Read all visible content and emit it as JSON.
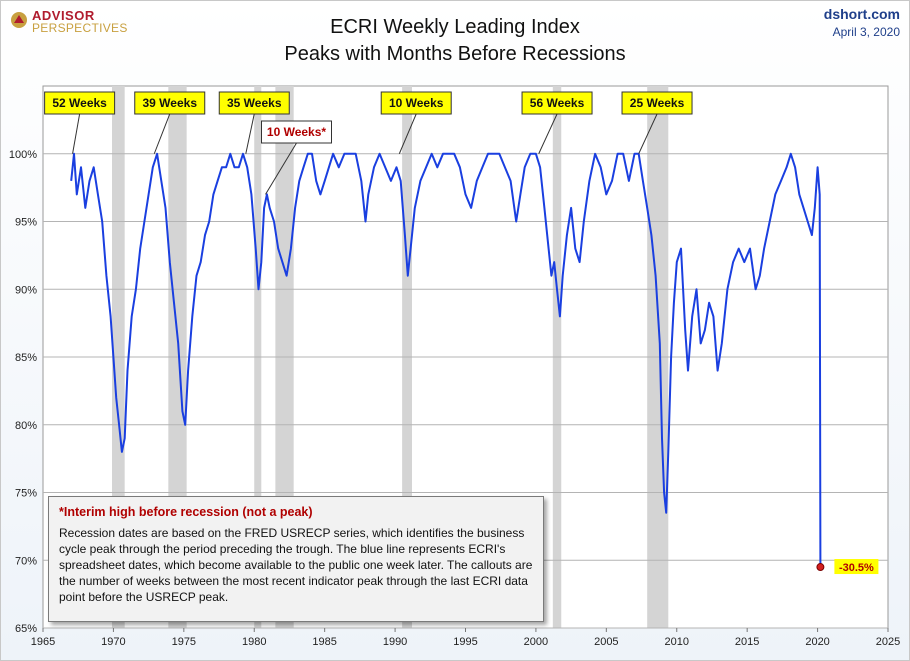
{
  "logo": {
    "line1": "ADVISOR",
    "line2": "PERSPECTIVES"
  },
  "header": {
    "title_line1": "ECRI Weekly Leading Index",
    "title_line2": "Peaks with Months Before Recessions",
    "site": "dshort.com",
    "date": "April 3, 2020"
  },
  "note": {
    "heading": "*Interim high before recession (not a peak)",
    "text": "Recession dates are based on the FRED USRECP series, which identifies the business cycle peak through the period preceding the trough. The blue line represents ECRI's spreadsheet dates, which become available to the public one week later. The callouts are the number of weeks between the most recent indicator peak through the last ECRI data point before the USRECP peak."
  },
  "colors": {
    "line": "#1a3fe0",
    "recession": "#d4d4d4",
    "callout_fill": "#ffff00",
    "interim_text": "#b00000",
    "end_marker": "#d42020"
  },
  "chart_data": {
    "type": "line",
    "xlim": [
      1965,
      2025
    ],
    "ylim": [
      65,
      105
    ],
    "x_ticks": [
      1965,
      1970,
      1975,
      1980,
      1985,
      1990,
      1995,
      2000,
      2005,
      2010,
      2015,
      2020,
      2025
    ],
    "y_ticks": [
      65,
      70,
      75,
      80,
      85,
      90,
      95,
      100
    ],
    "y_tick_labels": [
      "65%",
      "70%",
      "75%",
      "80%",
      "85%",
      "90%",
      "95%",
      "100%"
    ],
    "grid": true,
    "recessions": [
      [
        1969.9,
        1970.8
      ],
      [
        1973.9,
        1975.2
      ],
      [
        1980.0,
        1980.5
      ],
      [
        1981.5,
        1982.8
      ],
      [
        1990.5,
        1991.2
      ],
      [
        2001.2,
        2001.8
      ],
      [
        2007.9,
        2009.4
      ]
    ],
    "callouts": [
      {
        "label": "52 Weeks",
        "peak_x": 1967.1,
        "box_x": 1967.6,
        "interim": false
      },
      {
        "label": "39 Weeks",
        "peak_x": 1972.9,
        "box_x": 1974.0,
        "interim": false
      },
      {
        "label": "35 Weeks",
        "peak_x": 1979.4,
        "box_x": 1980.0,
        "interim": false
      },
      {
        "label": "10 Weeks*",
        "peak_x": 1980.8,
        "box_x": 1983.0,
        "interim": true
      },
      {
        "label": "10 Weeks",
        "peak_x": 1990.3,
        "box_x": 1991.5,
        "interim": false
      },
      {
        "label": "56 Weeks",
        "peak_x": 2000.2,
        "box_x": 2001.5,
        "interim": false
      },
      {
        "label": "25 Weeks",
        "peak_x": 2007.3,
        "box_x": 2008.6,
        "interim": false
      }
    ],
    "end_point": {
      "x": 2020.2,
      "y": 69.5,
      "label": "-30.5%"
    },
    "series": [
      {
        "values": [
          [
            1967.0,
            98
          ],
          [
            1967.2,
            100
          ],
          [
            1967.4,
            97
          ],
          [
            1967.7,
            99
          ],
          [
            1968.0,
            96
          ],
          [
            1968.3,
            98
          ],
          [
            1968.6,
            99
          ],
          [
            1968.9,
            97
          ],
          [
            1969.2,
            95
          ],
          [
            1969.5,
            91
          ],
          [
            1969.8,
            88
          ],
          [
            1970.0,
            85
          ],
          [
            1970.2,
            82
          ],
          [
            1970.4,
            80
          ],
          [
            1970.6,
            78
          ],
          [
            1970.8,
            79
          ],
          [
            1971.0,
            84
          ],
          [
            1971.3,
            88
          ],
          [
            1971.6,
            90
          ],
          [
            1971.9,
            93
          ],
          [
            1972.2,
            95
          ],
          [
            1972.5,
            97
          ],
          [
            1972.8,
            99
          ],
          [
            1973.1,
            100
          ],
          [
            1973.4,
            98
          ],
          [
            1973.7,
            96
          ],
          [
            1974.0,
            92
          ],
          [
            1974.3,
            89
          ],
          [
            1974.6,
            86
          ],
          [
            1974.9,
            81
          ],
          [
            1975.1,
            80
          ],
          [
            1975.3,
            84
          ],
          [
            1975.6,
            88
          ],
          [
            1975.9,
            91
          ],
          [
            1976.2,
            92
          ],
          [
            1976.5,
            94
          ],
          [
            1976.8,
            95
          ],
          [
            1977.1,
            97
          ],
          [
            1977.4,
            98
          ],
          [
            1977.7,
            99
          ],
          [
            1978.0,
            99
          ],
          [
            1978.3,
            100
          ],
          [
            1978.6,
            99
          ],
          [
            1978.9,
            99
          ],
          [
            1979.2,
            100
          ],
          [
            1979.5,
            99
          ],
          [
            1979.8,
            97
          ],
          [
            1980.1,
            93
          ],
          [
            1980.3,
            90
          ],
          [
            1980.5,
            92
          ],
          [
            1980.7,
            96
          ],
          [
            1980.9,
            97
          ],
          [
            1981.1,
            96
          ],
          [
            1981.4,
            95
          ],
          [
            1981.7,
            93
          ],
          [
            1982.0,
            92
          ],
          [
            1982.3,
            91
          ],
          [
            1982.6,
            93
          ],
          [
            1982.9,
            96
          ],
          [
            1983.2,
            98
          ],
          [
            1983.5,
            99
          ],
          [
            1983.8,
            100
          ],
          [
            1984.1,
            100
          ],
          [
            1984.4,
            98
          ],
          [
            1984.7,
            97
          ],
          [
            1985.0,
            98
          ],
          [
            1985.3,
            99
          ],
          [
            1985.6,
            100
          ],
          [
            1986.0,
            99
          ],
          [
            1986.4,
            100
          ],
          [
            1986.8,
            100
          ],
          [
            1987.2,
            100
          ],
          [
            1987.6,
            98
          ],
          [
            1987.9,
            95
          ],
          [
            1988.1,
            97
          ],
          [
            1988.5,
            99
          ],
          [
            1988.9,
            100
          ],
          [
            1989.3,
            99
          ],
          [
            1989.7,
            98
          ],
          [
            1990.1,
            99
          ],
          [
            1990.4,
            98
          ],
          [
            1990.7,
            94
          ],
          [
            1990.9,
            91
          ],
          [
            1991.1,
            93
          ],
          [
            1991.4,
            96
          ],
          [
            1991.8,
            98
          ],
          [
            1992.2,
            99
          ],
          [
            1992.6,
            100
          ],
          [
            1993.0,
            99
          ],
          [
            1993.4,
            100
          ],
          [
            1993.8,
            100
          ],
          [
            1994.2,
            100
          ],
          [
            1994.6,
            99
          ],
          [
            1995.0,
            97
          ],
          [
            1995.4,
            96
          ],
          [
            1995.8,
            98
          ],
          [
            1996.2,
            99
          ],
          [
            1996.6,
            100
          ],
          [
            1997.0,
            100
          ],
          [
            1997.4,
            100
          ],
          [
            1997.8,
            99
          ],
          [
            1998.2,
            98
          ],
          [
            1998.6,
            95
          ],
          [
            1998.9,
            97
          ],
          [
            1999.2,
            99
          ],
          [
            1999.6,
            100
          ],
          [
            2000.0,
            100
          ],
          [
            2000.3,
            99
          ],
          [
            2000.6,
            96
          ],
          [
            2000.9,
            93
          ],
          [
            2001.1,
            91
          ],
          [
            2001.3,
            92
          ],
          [
            2001.5,
            90
          ],
          [
            2001.7,
            88
          ],
          [
            2001.9,
            91
          ],
          [
            2002.2,
            94
          ],
          [
            2002.5,
            96
          ],
          [
            2002.8,
            93
          ],
          [
            2003.1,
            92
          ],
          [
            2003.4,
            95
          ],
          [
            2003.8,
            98
          ],
          [
            2004.2,
            100
          ],
          [
            2004.6,
            99
          ],
          [
            2005.0,
            97
          ],
          [
            2005.4,
            98
          ],
          [
            2005.8,
            100
          ],
          [
            2006.2,
            100
          ],
          [
            2006.6,
            98
          ],
          [
            2007.0,
            100
          ],
          [
            2007.3,
            100
          ],
          [
            2007.6,
            98
          ],
          [
            2007.9,
            96
          ],
          [
            2008.2,
            94
          ],
          [
            2008.5,
            91
          ],
          [
            2008.8,
            86
          ],
          [
            2008.95,
            79
          ],
          [
            2009.1,
            75
          ],
          [
            2009.25,
            73.5
          ],
          [
            2009.4,
            78
          ],
          [
            2009.6,
            85
          ],
          [
            2009.8,
            89
          ],
          [
            2010.0,
            92
          ],
          [
            2010.3,
            93
          ],
          [
            2010.6,
            87
          ],
          [
            2010.8,
            84
          ],
          [
            2011.1,
            88
          ],
          [
            2011.4,
            90
          ],
          [
            2011.7,
            86
          ],
          [
            2012.0,
            87
          ],
          [
            2012.3,
            89
          ],
          [
            2012.6,
            88
          ],
          [
            2012.9,
            84
          ],
          [
            2013.2,
            86
          ],
          [
            2013.6,
            90
          ],
          [
            2014.0,
            92
          ],
          [
            2014.4,
            93
          ],
          [
            2014.8,
            92
          ],
          [
            2015.2,
            93
          ],
          [
            2015.6,
            90
          ],
          [
            2015.9,
            91
          ],
          [
            2016.2,
            93
          ],
          [
            2016.6,
            95
          ],
          [
            2017.0,
            97
          ],
          [
            2017.4,
            98
          ],
          [
            2017.8,
            99
          ],
          [
            2018.1,
            100
          ],
          [
            2018.4,
            99
          ],
          [
            2018.7,
            97
          ],
          [
            2019.0,
            96
          ],
          [
            2019.3,
            95
          ],
          [
            2019.6,
            94
          ],
          [
            2019.8,
            96
          ],
          [
            2020.0,
            99
          ],
          [
            2020.15,
            97
          ],
          [
            2020.2,
            69.5
          ]
        ]
      }
    ]
  }
}
